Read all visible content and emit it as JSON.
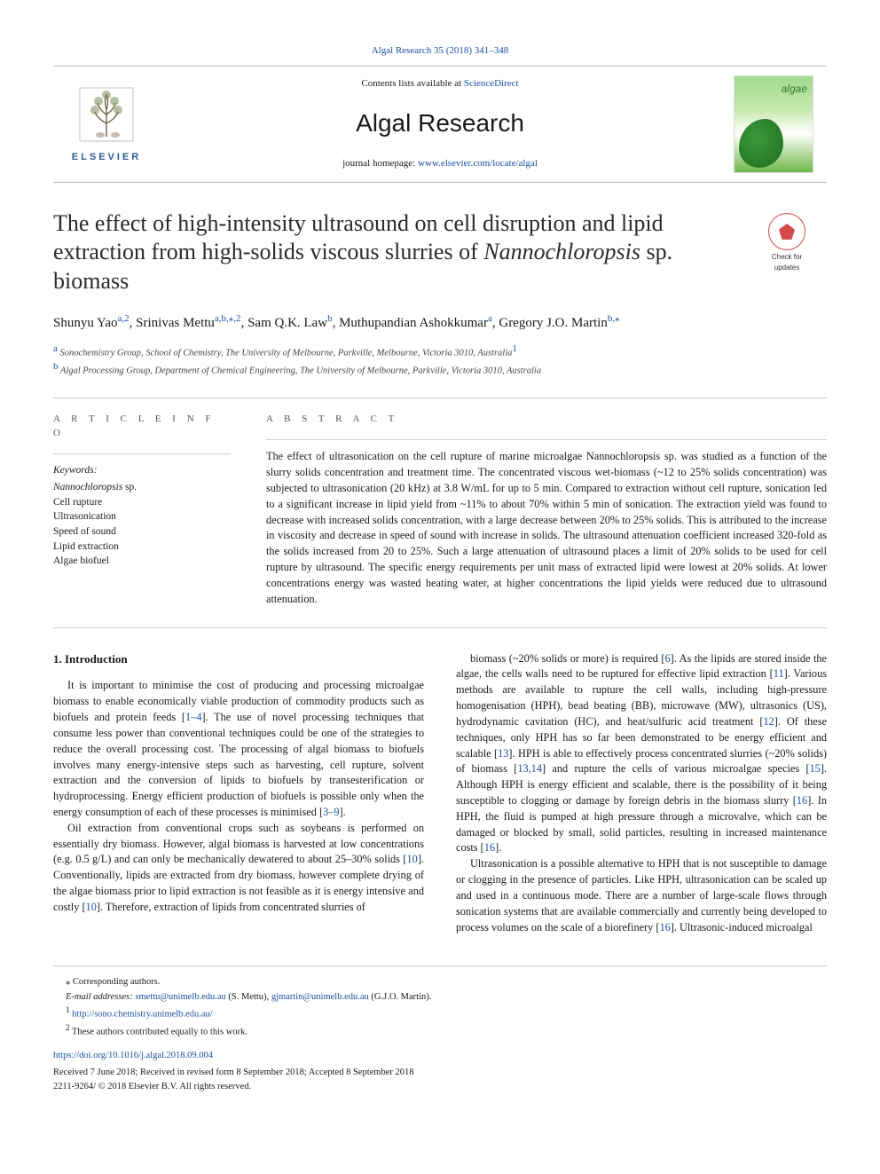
{
  "colors": {
    "link": "#1a4f9e",
    "text": "#1a1a1a",
    "rule": "#cfcfcf",
    "publisher": "#2b5b8e",
    "check_badge": "#d44a4a"
  },
  "typography": {
    "body_font": "Georgia, 'Times New Roman', serif",
    "title_fontsize": 26,
    "journal_name_fontsize": 28,
    "body_fontsize": 12.3,
    "authors_fontsize": 15,
    "footnote_fontsize": 10.5
  },
  "header": {
    "issue_link_text": "Algal Research 35 (2018) 341–348",
    "contents_line_prefix": "Contents lists available at ",
    "contents_line_link": "ScienceDirect",
    "journal_name": "Algal Research",
    "homepage_label": "journal homepage: ",
    "homepage_url": "www.elsevier.com/locate/algal",
    "publisher_name": "ELSEVIER",
    "cover_thumb_label": "algae"
  },
  "check_updates": {
    "line1": "Check for",
    "line2": "updates"
  },
  "article": {
    "title_html": "The effect of high-intensity ultrasound on cell disruption and lipid extraction from high-solids viscous slurries of <em>Nannochloropsis</em> sp. biomass",
    "authors": [
      {
        "name": "Shunyu Yao",
        "affs": "a,2"
      },
      {
        "name": "Srinivas Mettu",
        "affs": "a,b,⁎,2"
      },
      {
        "name": "Sam Q.K. Law",
        "affs": "b"
      },
      {
        "name": "Muthupandian Ashokkumar",
        "affs": "a"
      },
      {
        "name": "Gregory J.O. Martin",
        "affs": "b,⁎"
      }
    ],
    "affiliations": [
      {
        "key": "a",
        "text": "Sonochemistry Group, School of Chemistry, The University of Melbourne, Parkville, Melbourne, Victoria 3010, Australia",
        "note_sup": "1"
      },
      {
        "key": "b",
        "text": "Algal Processing Group, Department of Chemical Engineering, The University of Melbourne, Parkville, Victoria 3010, Australia"
      }
    ]
  },
  "article_info_label": "A R T I C L E  I N F O",
  "abstract_label": "A B S T R A C T",
  "keywords_head": "Keywords:",
  "keywords": [
    "Nannochloropsis sp.",
    "Cell rupture",
    "Ultrasonication",
    "Speed of sound",
    "Lipid extraction",
    "Algae biofuel"
  ],
  "abstract_text": "The effect of ultrasonication on the cell rupture of marine microalgae Nannochloropsis sp. was studied as a function of the slurry solids concentration and treatment time. The concentrated viscous wet-biomass (~12 to 25% solids concentration) was subjected to ultrasonication (20 kHz) at 3.8 W/mL for up to 5 min. Compared to extraction without cell rupture, sonication led to a significant increase in lipid yield from ~11% to about 70% within 5 min of sonication. The extraction yield was found to decrease with increased solids concentration, with a large decrease between 20% to 25% solids. This is attributed to the increase in viscosity and decrease in speed of sound with increase in solids. The ultrasound attenuation coefficient increased 320-fold as the solids increased from 20 to 25%. Such a large attenuation of ultrasound places a limit of 20% solids to be used for cell rupture by ultrasound. The specific energy requirements per unit mass of extracted lipid were lowest at 20% solids. At lower concentrations energy was wasted heating water, at higher concentrations the lipid yields were reduced due to ultrasound attenuation.",
  "section1_heading": "1. Introduction",
  "body_left": [
    "It is important to minimise the cost of producing and processing microalgae biomass to enable economically viable production of commodity products such as biofuels and protein feeds [1–4]. The use of novel processing techniques that consume less power than conventional techniques could be one of the strategies to reduce the overall processing cost. The processing of algal biomass to biofuels involves many energy-intensive steps such as harvesting, cell rupture, solvent extraction and the conversion of lipids to biofuels by transesterification or hydroprocessing. Energy efficient production of biofuels is possible only when the energy consumption of each of these processes is minimised [3–9].",
    "Oil extraction from conventional crops such as soybeans is performed on essentially dry biomass. However, algal biomass is harvested at low concentrations (e.g. 0.5 g/L) and can only be mechanically dewatered to about 25–30% solids [10]. Conventionally, lipids are extracted from dry biomass, however complete drying of the algae biomass prior to lipid extraction is not feasible as it is energy intensive and costly [10]. Therefore, extraction of lipids from concentrated slurries of"
  ],
  "body_right": [
    "biomass (~20% solids or more) is required [6]. As the lipids are stored inside the algae, the cells walls need to be ruptured for effective lipid extraction [11]. Various methods are available to rupture the cell walls, including high-pressure homogenisation (HPH), bead beating (BB), microwave (MW), ultrasonics (US), hydrodynamic cavitation (HC), and heat/sulfuric acid treatment [12]. Of these techniques, only HPH has so far been demonstrated to be energy efficient and scalable [13]. HPH is able to effectively process concentrated slurries (~20% solids) of biomass [13,14] and rupture the cells of various microalgae species [15]. Although HPH is energy efficient and scalable, there is the possibility of it being susceptible to clogging or damage by foreign debris in the biomass slurry [16]. In HPH, the fluid is pumped at high pressure through a microvalve, which can be damaged or blocked by small, solid particles, resulting in increased maintenance costs [16].",
    "Ultrasonication is a possible alternative to HPH that is not susceptible to damage or clogging in the presence of particles. Like HPH, ultrasonication can be scaled up and used in a continuous mode. There are a number of large-scale flows through sonication systems that are available commercially and currently being developed to process volumes on the scale of a biorefinery [16]. Ultrasonic-induced microalgal"
  ],
  "footnotes": {
    "corr_label": "⁎ Corresponding authors.",
    "email_label": "E-mail addresses: ",
    "emails": [
      {
        "addr": "smettu@unimelb.edu.au",
        "who": "(S. Mettu)"
      },
      {
        "addr": "gjmartin@unimelb.edu.au",
        "who": "(G.J.O. Martin)"
      }
    ],
    "note1_sup": "1",
    "note1_text": "http://sono.chemistry.unimelb.edu.au/",
    "note2_sup": "2",
    "note2_text": "These authors contributed equally to this work."
  },
  "doi": "https://doi.org/10.1016/j.algal.2018.09.004",
  "history": "Received 7 June 2018; Received in revised form 8 September 2018; Accepted 8 September 2018",
  "issn_line": "2211-9264/ © 2018 Elsevier B.V. All rights reserved."
}
